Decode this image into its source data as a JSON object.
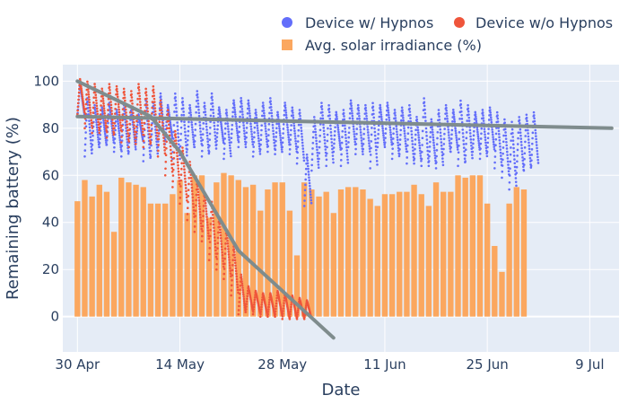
{
  "chart_data": {
    "type": "line",
    "xlabel": "Date",
    "ylabel": "Remaining battery (%)",
    "x_ticks": [
      "30 Apr",
      "14 May",
      "28 May",
      "11 Jun",
      "25 Jun",
      "9 Jul"
    ],
    "y_ticks": [
      "0",
      "20",
      "40",
      "60",
      "80",
      "100"
    ],
    "ylim": [
      -15,
      107
    ],
    "xlim": [
      "2022-04-28",
      "2022-07-13"
    ],
    "grid": true,
    "legend_position": "top-right",
    "legend": [
      {
        "label": "Device w/ Hypnos",
        "symbol": "circle",
        "color": "#636efa"
      },
      {
        "label": "Device w/o Hypnos",
        "symbol": "circle",
        "color": "#ef553b"
      },
      {
        "label": "Avg. solar irradiance (%)",
        "symbol": "square",
        "color": "#fba75f"
      }
    ],
    "series": [
      {
        "name": "Avg. solar irradiance (%)",
        "type": "bar",
        "color": "#fba75f",
        "start_date": "2022-04-30",
        "values": [
          49,
          58,
          51,
          56,
          53,
          36,
          59,
          57,
          56,
          55,
          48,
          48,
          48,
          52,
          58,
          44,
          60,
          60,
          42,
          57,
          61,
          60,
          58,
          55,
          56,
          45,
          54,
          57,
          57,
          45,
          26,
          57,
          54,
          51,
          53,
          44,
          54,
          55,
          55,
          54,
          50,
          47,
          52,
          52,
          53,
          53,
          56,
          52,
          47,
          57,
          53,
          53,
          60,
          59,
          60,
          60,
          48,
          30,
          19,
          48,
          55,
          54
        ]
      },
      {
        "name": "Device w/ Hypnos",
        "type": "scatter",
        "color": "#636efa",
        "start_date": "2022-04-30",
        "daily_max": [
          99,
          93,
          90,
          89,
          91,
          88,
          90,
          89,
          86,
          92,
          91,
          95,
          90,
          95,
          93,
          90,
          96,
          91,
          95,
          89,
          88,
          92,
          93,
          92,
          88,
          91,
          93,
          87,
          91,
          89,
          88,
          69,
          85,
          91,
          90,
          87,
          88,
          92,
          90,
          90,
          91,
          90,
          91,
          88,
          89,
          90,
          85,
          93,
          84,
          88,
          90,
          88,
          92,
          90,
          87,
          88,
          89,
          87,
          84,
          83,
          85,
          86,
          87
        ],
        "daily_min": [
          85,
          68,
          71,
          72,
          73,
          70,
          68,
          70,
          74,
          66,
          68,
          72,
          75,
          67,
          67,
          71,
          72,
          68,
          70,
          73,
          67,
          74,
          72,
          72,
          68,
          71,
          70,
          69,
          72,
          69,
          65,
          47,
          62,
          67,
          64,
          70,
          64,
          72,
          69,
          69,
          63,
          72,
          72,
          67,
          69,
          65,
          65,
          64,
          64,
          63,
          69,
          70,
          64,
          66,
          70,
          67,
          70,
          63,
          59,
          54,
          61,
          62,
          64
        ]
      },
      {
        "name": "Device w/o Hypnos",
        "type": "scatter",
        "color": "#ef553b",
        "start_date": "2022-04-30",
        "daily_max": [
          101,
          100,
          99,
          97,
          99,
          98,
          97,
          96,
          99,
          97,
          98,
          92,
          88,
          79,
          72,
          66,
          58,
          53,
          49,
          42,
          37,
          30,
          18,
          13,
          11,
          10,
          10,
          11,
          10,
          9,
          8,
          7
        ],
        "daily_min": [
          86,
          80,
          78,
          78,
          76,
          78,
          74,
          72,
          76,
          72,
          74,
          68,
          60,
          55,
          48,
          41,
          36,
          32,
          24,
          20,
          16,
          9,
          1,
          2,
          1,
          0,
          0,
          0,
          -1,
          -1,
          -1,
          -1
        ]
      },
      {
        "name": "",
        "type": "line",
        "color": "#7f8c8d",
        "points": [
          [
            "2022-04-30",
            85
          ],
          [
            "2022-07-12",
            80
          ]
        ]
      },
      {
        "name": "",
        "type": "line",
        "color": "#7f8c8d",
        "points": [
          [
            "2022-04-30",
            100
          ],
          [
            "2022-05-10",
            85
          ],
          [
            "2022-05-14",
            70
          ],
          [
            "2022-05-22",
            28
          ],
          [
            "2022-06-04",
            -9
          ]
        ]
      }
    ]
  }
}
